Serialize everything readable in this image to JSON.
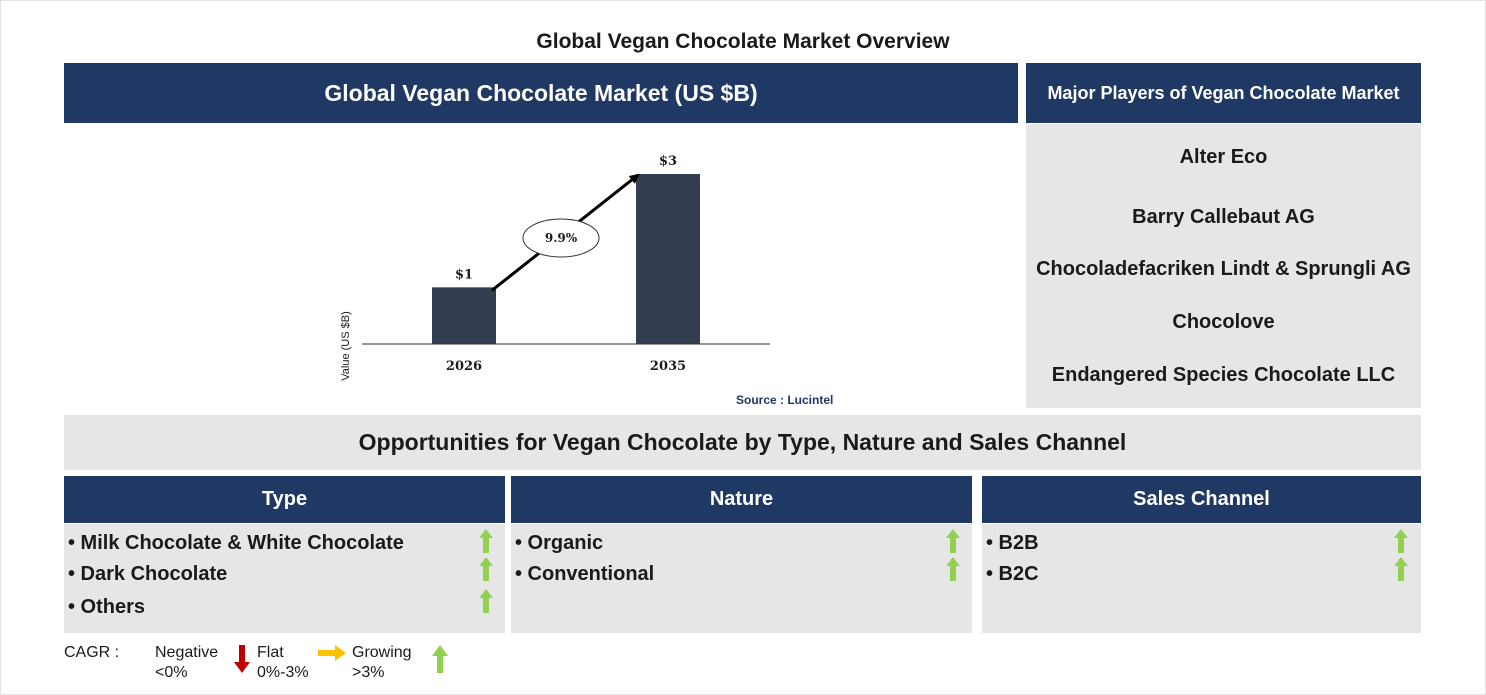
{
  "page_title": "Global Vegan Chocolate Market Overview",
  "chart_panel": {
    "header": "Global Vegan Chocolate Market (US $B)",
    "source": "Source : Lucintel"
  },
  "chart_data": {
    "type": "bar",
    "categories": [
      "2026",
      "2035"
    ],
    "values": [
      1,
      3
    ],
    "data_labels": [
      "$1",
      "$3"
    ],
    "title": "Global Vegan Chocolate Market (US $B)",
    "xlabel": "",
    "ylabel": "Value (US $B)",
    "ylim": [
      0,
      3.3
    ],
    "cagr_label": "9.9%",
    "bar_color": "#333f50",
    "grid": false
  },
  "players": {
    "header": "Major Players of Vegan Chocolate Market",
    "items": [
      "Alter Eco",
      "Barry Callebaut AG",
      "Chocoladefacriken Lindt & Sprungli AG",
      "Chocolove",
      "Endangered Species Chocolate LLC"
    ]
  },
  "opportunities": {
    "title": "Opportunities for Vegan Chocolate by Type, Nature and Sales Channel",
    "segments": [
      {
        "header": "Type",
        "items": [
          "• Milk Chocolate & White Chocolate",
          "• Dark Chocolate",
          "• Others"
        ],
        "trends": [
          "growing",
          "growing",
          "growing"
        ]
      },
      {
        "header": "Nature",
        "items": [
          "• Organic",
          "• Conventional"
        ],
        "trends": [
          "growing",
          "growing"
        ]
      },
      {
        "header": "Sales Channel",
        "items": [
          "• B2B",
          "• B2C"
        ],
        "trends": [
          "growing",
          "growing"
        ]
      }
    ]
  },
  "legend": {
    "label": "CAGR :",
    "negative": {
      "name": "Negative",
      "range": "<0%",
      "icon": "down-arrow-icon",
      "color": "#c00000"
    },
    "flat": {
      "name": "Flat",
      "range": "0%-3%",
      "icon": "right-arrow-icon",
      "color": "#ffc000"
    },
    "growing": {
      "name": "Growing",
      "range": ">3%",
      "icon": "up-arrow-icon",
      "color": "#92d050"
    }
  },
  "colors": {
    "navy": "#1f3864",
    "panel_gray": "#e6e6e6",
    "up_green": "#92d050"
  }
}
